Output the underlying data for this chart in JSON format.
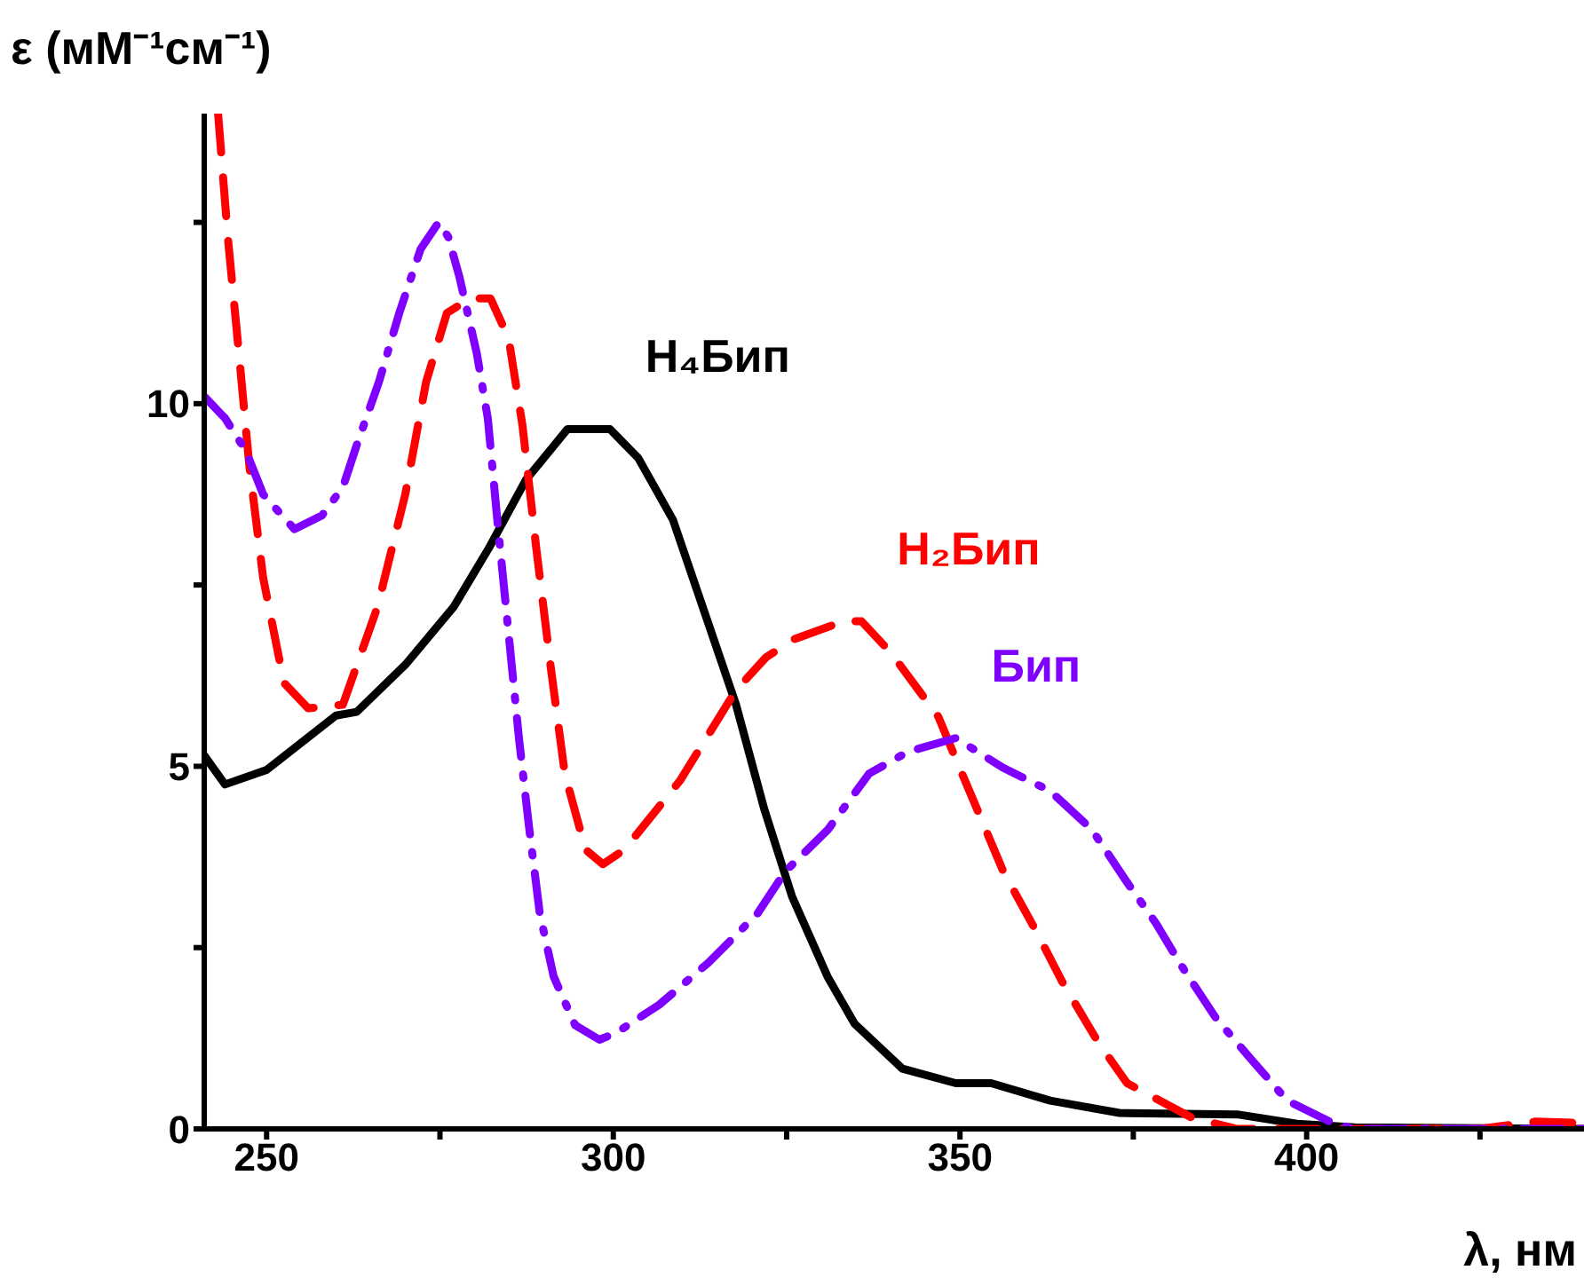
{
  "chart_data": {
    "type": "line",
    "xlabel": "λ, нм",
    "ylabel": "ε (мМ⁻¹см⁻¹)",
    "xlim": [
      241,
      440
    ],
    "xticks": [
      250,
      {
        "value": 275,
        "label": null
      },
      300,
      {
        "value": 325,
        "label": null
      },
      350,
      {
        "value": 375,
        "label": null
      },
      400,
      {
        "value": 425,
        "label": null
      }
    ],
    "ylim": [
      0,
      14
    ],
    "yticks": [
      0,
      {
        "value": 2.5,
        "label": null
      },
      5,
      {
        "value": 7.5,
        "label": null
      },
      10,
      {
        "value": 12.5,
        "label": null
      }
    ],
    "series": [
      {
        "name": "H₄Бип",
        "color": "#000000",
        "line_style": "solid",
        "x": [
          241,
          244,
          250,
          260,
          263,
          270,
          277,
          282,
          287.4,
          293.4,
          299.5,
          303.6,
          308.6,
          313.6,
          317.7,
          321.8,
          325.8,
          330.9,
          334.8,
          341.7,
          349.4,
          354.5,
          363,
          373,
          390,
          398.6,
          407,
          440
        ],
        "values": [
          5.15,
          4.75,
          4.95,
          5.7,
          5.75,
          6.4,
          7.2,
          8.0,
          8.95,
          9.65,
          9.65,
          9.25,
          8.4,
          7.0,
          5.85,
          4.4,
          3.2,
          2.1,
          1.45,
          0.83,
          0.63,
          0.63,
          0.39,
          0.22,
          0.2,
          0.07,
          0.02,
          0
        ]
      },
      {
        "name": "H₂Бип",
        "color": "#ff0000",
        "line_style": "dashed",
        "x": [
          243,
          244.4,
          246,
          247.5,
          249.5,
          252.5,
          256,
          261,
          266,
          270,
          273,
          276,
          279.3,
          282.3,
          284.9,
          286.9,
          288.9,
          291,
          293,
          296,
          298.5,
          301.6,
          309.6,
          317.7,
          322,
          326,
          333.2,
          335.8,
          340,
          346.9,
          349.4,
          353.7,
          356.2,
          361.3,
          364.8,
          369.9,
          374.1,
          383.5,
          390,
          425,
          433,
          440
        ],
        "values": [
          14,
          12.3,
          10.7,
          9.15,
          7.6,
          6.15,
          5.8,
          5.85,
          7.2,
          8.75,
          10.3,
          11.25,
          11.45,
          11.45,
          10.9,
          9.7,
          8.0,
          6.35,
          4.9,
          3.85,
          3.65,
          3.85,
          4.8,
          6.05,
          6.5,
          6.75,
          7.0,
          7.0,
          6.57,
          5.68,
          5.1,
          4.13,
          3.56,
          2.67,
          2.02,
          1.2,
          0.63,
          0.15,
          0,
          0,
          0.1,
          0.08
        ]
      },
      {
        "name": "Бип",
        "color": "#8000ff",
        "line_style": "dashdot",
        "x": [
          241,
          244,
          247,
          249.5,
          254,
          258,
          261,
          263,
          266.2,
          269.2,
          272.2,
          274.8,
          276.2,
          277.8,
          280.3,
          281.9,
          283.3,
          284.9,
          286.4,
          287.9,
          289.4,
          291.4,
          294.5,
          298,
          300.5,
          306.6,
          313.7,
          320.8,
          324.8,
          330.9,
          336.9,
          342.5,
          349.4,
          356.2,
          363,
          369,
          374.1,
          378.3,
          381.8,
          386.9,
          392,
          397.2,
          404,
          407,
          440
        ],
        "values": [
          10.1,
          9.8,
          9.35,
          8.75,
          8.27,
          8.46,
          8.85,
          9.43,
          10.3,
          11.27,
          12.13,
          12.5,
          12.3,
          11.75,
          10.7,
          9.8,
          8.37,
          6.83,
          5.38,
          4.12,
          2.97,
          2.1,
          1.43,
          1.23,
          1.33,
          1.71,
          2.29,
          2.97,
          3.55,
          4.12,
          4.9,
          5.2,
          5.39,
          4.98,
          4.66,
          4.13,
          3.4,
          2.83,
          2.27,
          1.53,
          0.96,
          0.39,
          0.07,
          0,
          0
        ]
      }
    ]
  }
}
